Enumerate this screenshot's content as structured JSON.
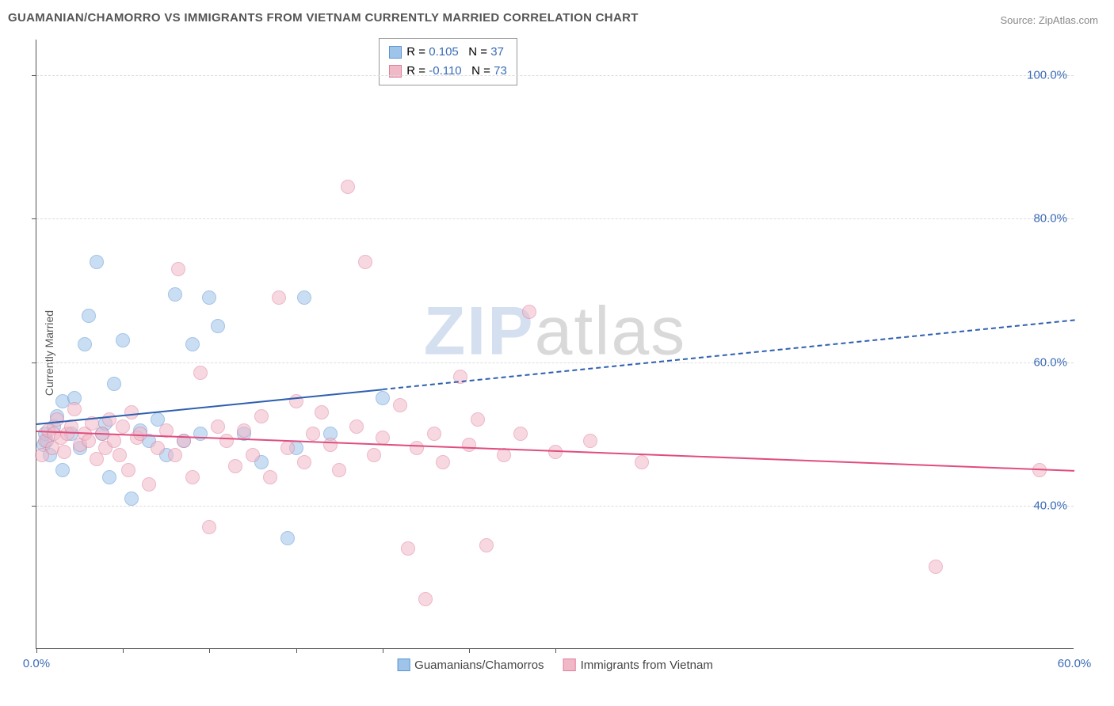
{
  "title": "GUAMANIAN/CHAMORRO VS IMMIGRANTS FROM VIETNAM CURRENTLY MARRIED CORRELATION CHART",
  "source": "Source: ZipAtlas.com",
  "ylabel": "Currently Married",
  "watermark": {
    "part1": "ZIP",
    "part2": "atlas"
  },
  "chart": {
    "type": "scatter",
    "background_color": "#ffffff",
    "grid_color": "#dcdcdc",
    "axis_color": "#555555",
    "tick_font_color": "#3b6bb8",
    "tick_fontsize": 15,
    "title_fontsize": 15,
    "label_fontsize": 14,
    "xlim": [
      0,
      60
    ],
    "ylim": [
      20,
      105
    ],
    "ytick_values": [
      40,
      60,
      80,
      100
    ],
    "ytick_labels": [
      "40.0%",
      "60.0%",
      "80.0%",
      "100.0%"
    ],
    "xtick_values": [
      0,
      60
    ],
    "xtick_labels": [
      "0.0%",
      "60.0%"
    ],
    "xtick_marks": [
      0,
      5,
      10,
      15,
      20,
      25,
      30
    ],
    "point_radius": 9,
    "point_opacity": 0.55,
    "series": [
      {
        "name": "Guamanians/Chamorros",
        "fill_color": "#9ec4ea",
        "stroke_color": "#5a93d4",
        "R": "0.105",
        "N": "37",
        "trend": {
          "y_at_x0": 51.5,
          "y_at_x60": 66.0,
          "solid_until_x": 20,
          "color": "#2e5fb0"
        },
        "points": [
          [
            0.4,
            48.5
          ],
          [
            0.5,
            50.0
          ],
          [
            0.6,
            49.0
          ],
          [
            0.8,
            47.0
          ],
          [
            1.0,
            51.0
          ],
          [
            1.2,
            52.5
          ],
          [
            1.5,
            54.5
          ],
          [
            1.5,
            45.0
          ],
          [
            2.0,
            50.0
          ],
          [
            2.2,
            55.0
          ],
          [
            2.5,
            48.0
          ],
          [
            2.8,
            62.5
          ],
          [
            3.0,
            66.5
          ],
          [
            3.5,
            74.0
          ],
          [
            3.8,
            50.0
          ],
          [
            4.0,
            51.5
          ],
          [
            4.2,
            44.0
          ],
          [
            4.5,
            57.0
          ],
          [
            5.0,
            63.0
          ],
          [
            5.5,
            41.0
          ],
          [
            6.0,
            50.5
          ],
          [
            6.5,
            49.0
          ],
          [
            7.0,
            52.0
          ],
          [
            7.5,
            47.0
          ],
          [
            8.0,
            69.5
          ],
          [
            8.5,
            49.0
          ],
          [
            9.0,
            62.5
          ],
          [
            9.5,
            50.0
          ],
          [
            10.0,
            69.0
          ],
          [
            10.5,
            65.0
          ],
          [
            12.0,
            50.0
          ],
          [
            13.0,
            46.0
          ],
          [
            14.5,
            35.5
          ],
          [
            15.0,
            48.0
          ],
          [
            15.5,
            69.0
          ],
          [
            17.0,
            50.0
          ],
          [
            20.0,
            55.0
          ]
        ]
      },
      {
        "name": "Immigrants from Vietnam",
        "fill_color": "#f1b9c7",
        "stroke_color": "#e07e9c",
        "R": "-0.110",
        "N": "73",
        "trend": {
          "y_at_x0": 50.5,
          "y_at_x60": 45.0,
          "solid_until_x": 60,
          "color": "#e04d7e"
        },
        "points": [
          [
            0.3,
            47.0
          ],
          [
            0.5,
            49.0
          ],
          [
            0.7,
            50.5
          ],
          [
            0.9,
            48.0
          ],
          [
            1.0,
            50.0
          ],
          [
            1.2,
            52.0
          ],
          [
            1.4,
            49.5
          ],
          [
            1.6,
            47.5
          ],
          [
            1.8,
            50.0
          ],
          [
            2.0,
            51.0
          ],
          [
            2.2,
            53.5
          ],
          [
            2.5,
            48.5
          ],
          [
            2.8,
            50.0
          ],
          [
            3.0,
            49.0
          ],
          [
            3.2,
            51.5
          ],
          [
            3.5,
            46.5
          ],
          [
            3.8,
            50.0
          ],
          [
            4.0,
            48.0
          ],
          [
            4.2,
            52.0
          ],
          [
            4.5,
            49.0
          ],
          [
            4.8,
            47.0
          ],
          [
            5.0,
            51.0
          ],
          [
            5.3,
            45.0
          ],
          [
            5.5,
            53.0
          ],
          [
            5.8,
            49.5
          ],
          [
            6.0,
            50.0
          ],
          [
            6.5,
            43.0
          ],
          [
            7.0,
            48.0
          ],
          [
            7.5,
            50.5
          ],
          [
            8.0,
            47.0
          ],
          [
            8.2,
            73.0
          ],
          [
            8.5,
            49.0
          ],
          [
            9.0,
            44.0
          ],
          [
            9.5,
            58.5
          ],
          [
            10.0,
            37.0
          ],
          [
            10.5,
            51.0
          ],
          [
            11.0,
            49.0
          ],
          [
            11.5,
            45.5
          ],
          [
            12.0,
            50.5
          ],
          [
            12.5,
            47.0
          ],
          [
            13.0,
            52.5
          ],
          [
            13.5,
            44.0
          ],
          [
            14.0,
            69.0
          ],
          [
            14.5,
            48.0
          ],
          [
            15.0,
            54.5
          ],
          [
            15.5,
            46.0
          ],
          [
            16.0,
            50.0
          ],
          [
            16.5,
            53.0
          ],
          [
            17.0,
            48.5
          ],
          [
            17.5,
            45.0
          ],
          [
            18.0,
            84.5
          ],
          [
            18.5,
            51.0
          ],
          [
            19.0,
            74.0
          ],
          [
            19.5,
            47.0
          ],
          [
            20.0,
            49.5
          ],
          [
            21.0,
            54.0
          ],
          [
            21.5,
            34.0
          ],
          [
            22.0,
            48.0
          ],
          [
            22.5,
            27.0
          ],
          [
            23.0,
            50.0
          ],
          [
            23.5,
            46.0
          ],
          [
            24.5,
            58.0
          ],
          [
            25.0,
            48.5
          ],
          [
            25.5,
            52.0
          ],
          [
            26.0,
            34.5
          ],
          [
            27.0,
            47.0
          ],
          [
            28.0,
            50.0
          ],
          [
            28.5,
            67.0
          ],
          [
            30.0,
            47.5
          ],
          [
            32.0,
            49.0
          ],
          [
            35.0,
            46.0
          ],
          [
            52.0,
            31.5
          ],
          [
            58.0,
            45.0
          ]
        ]
      }
    ]
  },
  "legend_top": {
    "R_label": "R =",
    "N_label": "N ="
  },
  "legend_bottom_labels": [
    "Guamanians/Chamorros",
    "Immigrants from Vietnam"
  ]
}
